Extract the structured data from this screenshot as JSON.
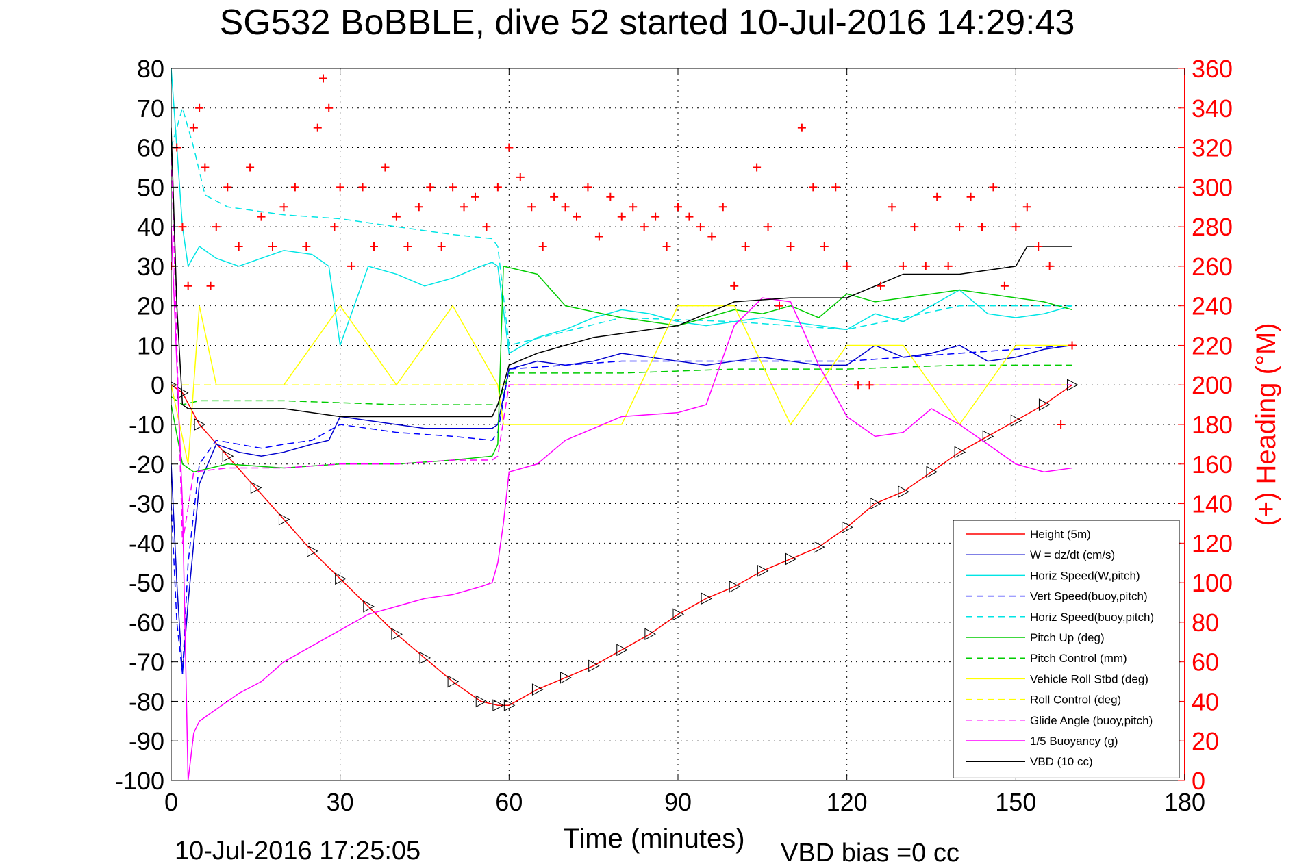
{
  "chart_data": {
    "type": "line",
    "title": "SG532 BoBBLE, dive 52 started 10-Jul-2016 14:29:43",
    "xlabel": "Time (minutes)",
    "ylabel": "",
    "y2label": "(+) Heading (°M)",
    "xlim": [
      0,
      180
    ],
    "ylim": [
      -100,
      80
    ],
    "y2lim": [
      0,
      360
    ],
    "xticks": [
      "0",
      "30",
      "60",
      "90",
      "120",
      "150",
      "180"
    ],
    "yticks": [
      "80",
      "70",
      "60",
      "50",
      "40",
      "30",
      "20",
      "10",
      "0",
      "-10",
      "-20",
      "-30",
      "-40",
      "-50",
      "-60",
      "-70",
      "-80",
      "-90",
      "-100"
    ],
    "y2ticks": [
      "360",
      "340",
      "320",
      "300",
      "280",
      "260",
      "240",
      "220",
      "200",
      "180",
      "160",
      "140",
      "120",
      "100",
      "80",
      "60",
      "40",
      "20",
      "0"
    ],
    "grid": true,
    "legend_position": "bottom-right",
    "footer_left": "10-Jul-2016 17:25:05",
    "footer_right": "VBD bias =0 cc",
    "series": [
      {
        "name": "Height (5m)",
        "color": "#ff0000",
        "style": "solid",
        "marker": "triangle",
        "x": [
          0,
          2,
          5,
          10,
          15,
          20,
          25,
          30,
          35,
          40,
          45,
          50,
          55,
          58,
          60,
          65,
          70,
          75,
          80,
          85,
          90,
          95,
          100,
          105,
          110,
          115,
          120,
          125,
          130,
          135,
          140,
          145,
          150,
          155,
          160
        ],
        "y": [
          0,
          -2,
          -10,
          -18,
          -26,
          -34,
          -42,
          -49,
          -56,
          -63,
          -69,
          -75,
          -80,
          -81,
          -81,
          -77,
          -74,
          -71,
          -67,
          -63,
          -58,
          -54,
          -51,
          -47,
          -44,
          -41,
          -36,
          -30,
          -27,
          -22,
          -17,
          -13,
          -9,
          -5,
          0
        ]
      },
      {
        "name": "W = dz/dt (cm/s)",
        "color": "#0000cc",
        "style": "solid",
        "x": [
          0,
          1,
          2,
          3,
          5,
          8,
          12,
          16,
          20,
          25,
          28,
          30,
          35,
          40,
          45,
          50,
          55,
          57,
          58,
          60,
          65,
          70,
          75,
          80,
          85,
          90,
          95,
          100,
          105,
          110,
          115,
          120,
          125,
          130,
          135,
          140,
          145,
          150,
          155,
          160
        ],
        "y": [
          -20,
          -50,
          -73,
          -55,
          -25,
          -15,
          -17,
          -18,
          -17,
          -15,
          -14,
          -8,
          -9,
          -10,
          -11,
          -11,
          -11,
          -11,
          -10,
          4,
          6,
          5,
          6,
          8,
          7,
          6,
          5,
          6,
          7,
          6,
          5,
          5,
          10,
          7,
          8,
          10,
          6,
          7,
          9,
          10
        ]
      },
      {
        "name": "Horiz Speed(W,pitch)",
        "color": "#00e5e5",
        "style": "solid",
        "x": [
          0,
          1,
          2,
          3,
          5,
          8,
          12,
          16,
          20,
          25,
          28,
          30,
          35,
          40,
          45,
          50,
          55,
          57,
          58,
          60,
          65,
          70,
          75,
          80,
          85,
          90,
          95,
          100,
          105,
          110,
          115,
          120,
          125,
          130,
          135,
          140,
          145,
          150,
          155,
          160
        ],
        "y": [
          80,
          60,
          40,
          30,
          35,
          32,
          30,
          32,
          34,
          33,
          30,
          10,
          30,
          28,
          25,
          27,
          30,
          31,
          30,
          8,
          12,
          14,
          17,
          19,
          18,
          16,
          15,
          16,
          17,
          16,
          15,
          14,
          18,
          16,
          20,
          24,
          18,
          17,
          18,
          20
        ]
      },
      {
        "name": "Vert Speed(buoy,pitch)",
        "color": "#0000ff",
        "style": "dashed",
        "x": [
          0,
          1,
          2,
          3,
          5,
          8,
          12,
          16,
          20,
          25,
          30,
          40,
          50,
          57,
          58,
          60,
          80,
          100,
          120,
          140,
          160
        ],
        "y": [
          -30,
          -60,
          -73,
          -45,
          -20,
          -14,
          -15,
          -16,
          -15,
          -14,
          -10,
          -12,
          -13,
          -14,
          -12,
          4,
          6,
          6,
          6,
          8,
          10
        ]
      },
      {
        "name": "Horiz Speed(buoy,pitch)",
        "color": "#00e5e5",
        "style": "dashed",
        "x": [
          0,
          2,
          4,
          6,
          10,
          20,
          30,
          40,
          50,
          57,
          58,
          60,
          80,
          100,
          120,
          140,
          160
        ],
        "y": [
          60,
          70,
          60,
          48,
          45,
          43,
          42,
          40,
          38,
          37,
          35,
          10,
          17,
          16,
          14,
          20,
          20
        ]
      },
      {
        "name": "Pitch Up (deg)",
        "color": "#00cc00",
        "style": "solid",
        "x": [
          0,
          2,
          4,
          10,
          20,
          30,
          40,
          50,
          57,
          58,
          59,
          65,
          70,
          80,
          90,
          100,
          105,
          110,
          115,
          120,
          125,
          130,
          140,
          150,
          155,
          160
        ],
        "y": [
          -5,
          -20,
          -22,
          -20,
          -21,
          -20,
          -20,
          -19,
          -18,
          -15,
          30,
          28,
          20,
          17,
          15,
          19,
          18,
          20,
          17,
          23,
          21,
          22,
          24,
          22,
          21,
          19
        ]
      },
      {
        "name": "Pitch Control (mm)",
        "color": "#00cc00",
        "style": "dashed",
        "x": [
          0,
          2,
          5,
          20,
          40,
          57,
          58,
          60,
          80,
          100,
          120,
          140,
          160
        ],
        "y": [
          -3,
          -5,
          -4,
          -4,
          -5,
          -5,
          -5,
          3,
          3,
          4,
          4,
          5,
          5
        ]
      },
      {
        "name": "Vehicle Roll Stbd (deg)",
        "color": "#ffff00",
        "style": "solid",
        "x": [
          0,
          3,
          5,
          8,
          10,
          20,
          30,
          40,
          50,
          58,
          59,
          60,
          70,
          80,
          90,
          100,
          110,
          120,
          130,
          140,
          150,
          160
        ],
        "y": [
          0,
          -20,
          20,
          0,
          0,
          0,
          20,
          0,
          20,
          0,
          -10,
          -10,
          -10,
          -10,
          20,
          20,
          -10,
          10,
          10,
          -10,
          10,
          10
        ]
      },
      {
        "name": "Roll Control (deg)",
        "color": "#ffff00",
        "style": "dashed",
        "x": [
          0,
          10,
          60,
          100,
          120,
          160
        ],
        "y": [
          0,
          0,
          0,
          0,
          0,
          0
        ]
      },
      {
        "name": "Glide Angle (buoy,pitch)",
        "color": "#ff00ff",
        "style": "dashed",
        "x": [
          0,
          2,
          4,
          10,
          20,
          30,
          40,
          50,
          57,
          58,
          60,
          100,
          120,
          140,
          160
        ],
        "y": [
          60,
          -40,
          -22,
          -21,
          -21,
          -20,
          -20,
          -19,
          -19,
          -18,
          0,
          0,
          0,
          0,
          0
        ]
      },
      {
        "name": "1/5 Buoyancy (g)",
        "color": "#ff00ff",
        "style": "solid",
        "x": [
          0,
          2,
          3,
          4,
          5,
          8,
          12,
          16,
          20,
          25,
          30,
          35,
          40,
          45,
          50,
          55,
          57,
          58,
          59,
          60,
          65,
          70,
          80,
          90,
          95,
          100,
          105,
          110,
          115,
          120,
          125,
          130,
          135,
          140,
          145,
          150,
          155,
          160
        ],
        "y": [
          40,
          -30,
          -100,
          -88,
          -85,
          -82,
          -78,
          -75,
          -70,
          -66,
          -62,
          -58,
          -56,
          -54,
          -53,
          -51,
          -50,
          -45,
          -35,
          -22,
          -20,
          -14,
          -8,
          -7,
          -5,
          15,
          22,
          21,
          5,
          -8,
          -13,
          -12,
          -6,
          -10,
          -15,
          -20,
          -22,
          -21
        ]
      },
      {
        "name": "VBD (10 cc)",
        "color": "#000000",
        "style": "solid",
        "x": [
          0,
          1,
          2,
          3,
          10,
          20,
          30,
          40,
          50,
          55,
          57,
          58,
          60,
          65,
          70,
          75,
          80,
          90,
          100,
          110,
          120,
          130,
          140,
          150,
          152,
          160
        ],
        "y": [
          65,
          20,
          -5,
          -6,
          -6,
          -6,
          -8,
          -8,
          -8,
          -8,
          -8,
          -5,
          5,
          8,
          10,
          12,
          13,
          15,
          21,
          22,
          22,
          28,
          28,
          30,
          35,
          35
        ]
      },
      {
        "name": "",
        "color": "#ff0000",
        "style": "marker",
        "marker": "+",
        "axis": "right",
        "x": [
          0,
          1,
          2,
          3,
          4,
          5,
          6,
          7,
          8,
          10,
          12,
          14,
          16,
          18,
          20,
          22,
          24,
          26,
          27,
          28,
          29,
          30,
          32,
          34,
          36,
          38,
          40,
          42,
          44,
          46,
          48,
          50,
          52,
          54,
          56,
          58,
          60,
          62,
          64,
          66,
          68,
          70,
          72,
          74,
          76,
          78,
          80,
          82,
          84,
          86,
          88,
          90,
          92,
          94,
          96,
          98,
          100,
          102,
          104,
          106,
          108,
          110,
          112,
          114,
          116,
          118,
          120,
          122,
          124,
          126,
          128,
          130,
          132,
          134,
          136,
          138,
          140,
          142,
          144,
          146,
          148,
          150,
          152,
          154,
          156,
          158,
          160
        ],
        "y": [
          260,
          320,
          280,
          250,
          330,
          340,
          310,
          250,
          280,
          300,
          270,
          310,
          285,
          270,
          290,
          300,
          270,
          330,
          355,
          340,
          280,
          300,
          260,
          300,
          270,
          310,
          285,
          270,
          290,
          300,
          270,
          300,
          290,
          295,
          280,
          300,
          320,
          305,
          290,
          270,
          295,
          290,
          285,
          300,
          275,
          295,
          285,
          290,
          280,
          285,
          270,
          290,
          285,
          280,
          275,
          290,
          250,
          270,
          310,
          280,
          240,
          270,
          330,
          300,
          270,
          300,
          260,
          200,
          200,
          250,
          290,
          260,
          280,
          260,
          295,
          260,
          280,
          295,
          280,
          300,
          250,
          280,
          290,
          270,
          260,
          180,
          220
        ]
      }
    ]
  }
}
